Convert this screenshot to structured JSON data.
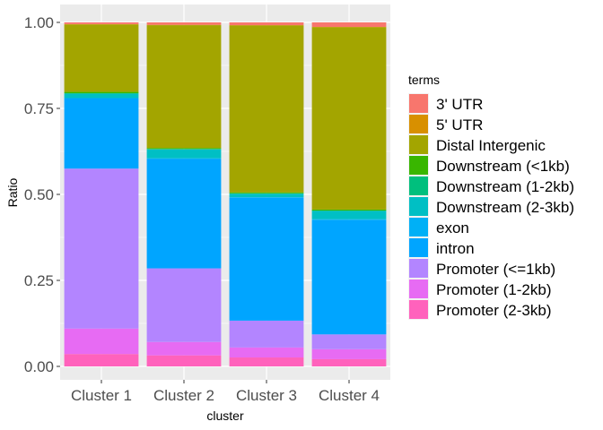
{
  "chart_data": {
    "type": "bar",
    "stacked": true,
    "xlabel": "cluster",
    "ylabel": "Ratio",
    "ylim": [
      0,
      1
    ],
    "yticks": [
      0,
      0.25,
      0.5,
      0.75,
      1
    ],
    "ytick_labels": [
      "0.00",
      "0.25",
      "0.50",
      "0.75",
      "1.00"
    ],
    "categories": [
      "Cluster 1",
      "Cluster 2",
      "Cluster 3",
      "Cluster 4"
    ],
    "grid": true,
    "legend_position": "right",
    "legend_title": "terms",
    "series": [
      {
        "name": "3' UTR",
        "color": "#F8766D",
        "values": [
          0.005,
          0.007,
          0.008,
          0.013
        ]
      },
      {
        "name": "5' UTR",
        "color": "#D89000",
        "values": [
          0.001,
          0.001,
          0.001,
          0.001
        ]
      },
      {
        "name": "Distal Intergenic",
        "color": "#A3A500",
        "values": [
          0.196,
          0.357,
          0.485,
          0.53
        ]
      },
      {
        "name": "Downstream (<1kb)",
        "color": "#39B600",
        "values": [
          0.004,
          0.003,
          0.003,
          0.003
        ]
      },
      {
        "name": "Downstream (1-2kb)",
        "color": "#00BF7D",
        "values": [
          0.001,
          0.001,
          0.001,
          0.001
        ]
      },
      {
        "name": "Downstream (2-3kb)",
        "color": "#00BFC4",
        "values": [
          0.013,
          0.026,
          0.01,
          0.024
        ]
      },
      {
        "name": "exon",
        "color": "#00B0F6",
        "values": [
          0.0,
          0.002,
          0.002,
          0.003
        ]
      },
      {
        "name": "intron",
        "color": "#00A5FF",
        "values": [
          0.205,
          0.318,
          0.357,
          0.332
        ]
      },
      {
        "name": "Promoter (<=1kb)",
        "color": "#B385FF",
        "values": [
          0.465,
          0.214,
          0.078,
          0.043
        ]
      },
      {
        "name": "Promoter (1-2kb)",
        "color": "#E76BF3",
        "values": [
          0.074,
          0.039,
          0.029,
          0.029
        ]
      },
      {
        "name": "Promoter (2-3kb)",
        "color": "#FF62BC",
        "values": [
          0.036,
          0.032,
          0.026,
          0.021
        ]
      }
    ]
  }
}
